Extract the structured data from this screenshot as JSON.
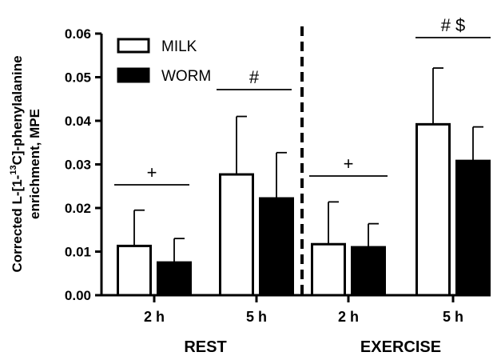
{
  "chart_data": {
    "type": "bar",
    "ylabel": {
      "pre": "Corrected L-[1-",
      "sup": "13",
      "post": "C]-phenylalanine",
      "line2": "enrichment, MPE"
    },
    "ylim": [
      0,
      0.06
    ],
    "yticks": [
      "0.00",
      "0.01",
      "0.02",
      "0.03",
      "0.04",
      "0.05",
      "0.06"
    ],
    "ytick_values": [
      0,
      0.01,
      0.02,
      0.03,
      0.04,
      0.05,
      0.06
    ],
    "categories": [
      "2 h",
      "5 h",
      "2 h",
      "5 h"
    ],
    "groups": [
      {
        "label": "REST",
        "categories": [
          0,
          1
        ]
      },
      {
        "label": "EXERCISE",
        "categories": [
          2,
          3
        ]
      }
    ],
    "series": [
      {
        "name": "MILK",
        "fill": "#ffffff",
        "values": [
          0.0113,
          0.0277,
          0.0117,
          0.0392
        ],
        "errors": [
          0.0082,
          0.0133,
          0.0097,
          0.0129
        ]
      },
      {
        "name": "WORM",
        "fill": "#000000",
        "values": [
          0.0075,
          0.0222,
          0.011,
          0.0308
        ],
        "errors": [
          0.0055,
          0.0105,
          0.0054,
          0.0078
        ]
      }
    ],
    "annotations": [
      {
        "text": "+",
        "categories": [
          0
        ]
      },
      {
        "text": "#",
        "categories": [
          1
        ]
      },
      {
        "text": "+",
        "categories": [
          2
        ]
      },
      {
        "text": "# $",
        "categories": [
          3
        ]
      }
    ],
    "divider": "dashed line between REST and EXERCISE",
    "legend_position": "top-left",
    "grid": false
  }
}
